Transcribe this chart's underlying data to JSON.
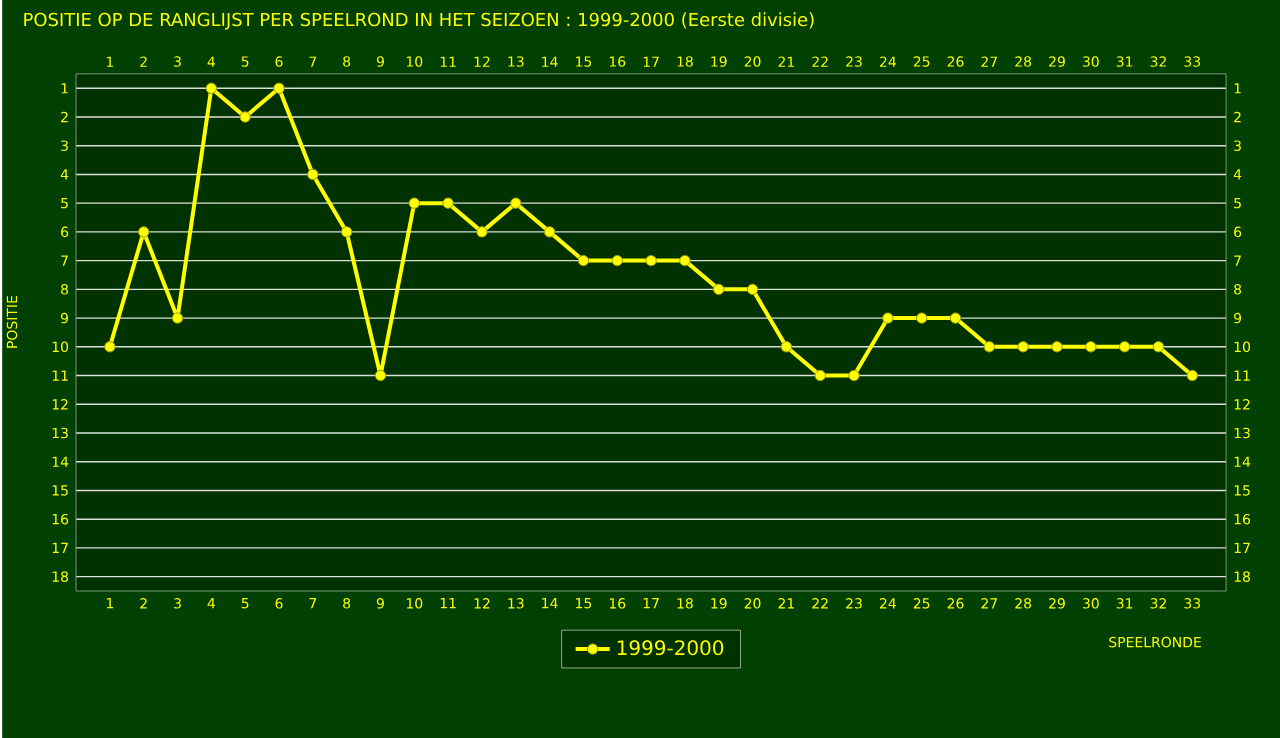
{
  "chart_data": {
    "type": "line",
    "title": "POSITIE OP DE RANGLIJST PER  SPEELROND IN HET SEIZOEN : 1999-2000 (Eerste divisie)",
    "xlabel": "SPEELRONDE",
    "ylabel": "POSITIE",
    "x": [
      1,
      2,
      3,
      4,
      5,
      6,
      7,
      8,
      9,
      10,
      11,
      12,
      13,
      14,
      15,
      16,
      17,
      18,
      19,
      20,
      21,
      22,
      23,
      24,
      25,
      26,
      27,
      28,
      29,
      30,
      31,
      32,
      33
    ],
    "series": [
      {
        "name": "1999-2000",
        "color": "#ffff00",
        "values": [
          10,
          6,
          9,
          1,
          2,
          1,
          4,
          6,
          11,
          5,
          5,
          6,
          5,
          6,
          7,
          7,
          7,
          7,
          8,
          8,
          10,
          11,
          11,
          9,
          9,
          9,
          10,
          10,
          10,
          10,
          10,
          10,
          11
        ]
      }
    ],
    "xlim": [
      0,
      34
    ],
    "xticks": [
      1,
      2,
      3,
      4,
      5,
      6,
      7,
      8,
      9,
      10,
      11,
      12,
      13,
      14,
      15,
      16,
      17,
      18,
      19,
      20,
      21,
      22,
      23,
      24,
      25,
      26,
      27,
      28,
      29,
      30,
      31,
      32,
      33
    ],
    "x2lim": [
      0,
      34
    ],
    "x2ticks": [
      1,
      2,
      3,
      4,
      5,
      6,
      7,
      8,
      9,
      10,
      11,
      12,
      13,
      14,
      15,
      16,
      17,
      18,
      19,
      20,
      21,
      22,
      23,
      24,
      25,
      26,
      27,
      28,
      29,
      30,
      31,
      32,
      33
    ],
    "ylim": [
      18.5,
      0.5
    ],
    "yticks": [
      1,
      2,
      3,
      4,
      5,
      6,
      7,
      8,
      9,
      10,
      11,
      12,
      13,
      14,
      15,
      16,
      17,
      18
    ],
    "y2lim": [
      18.5,
      0.5
    ],
    "y2ticks": [
      1,
      2,
      3,
      4,
      5,
      6,
      7,
      8,
      9,
      10,
      11,
      12,
      13,
      14,
      15,
      16,
      17,
      18
    ],
    "grid": "y",
    "legend": "bottom",
    "marker": "circle",
    "line_style": "solid"
  }
}
